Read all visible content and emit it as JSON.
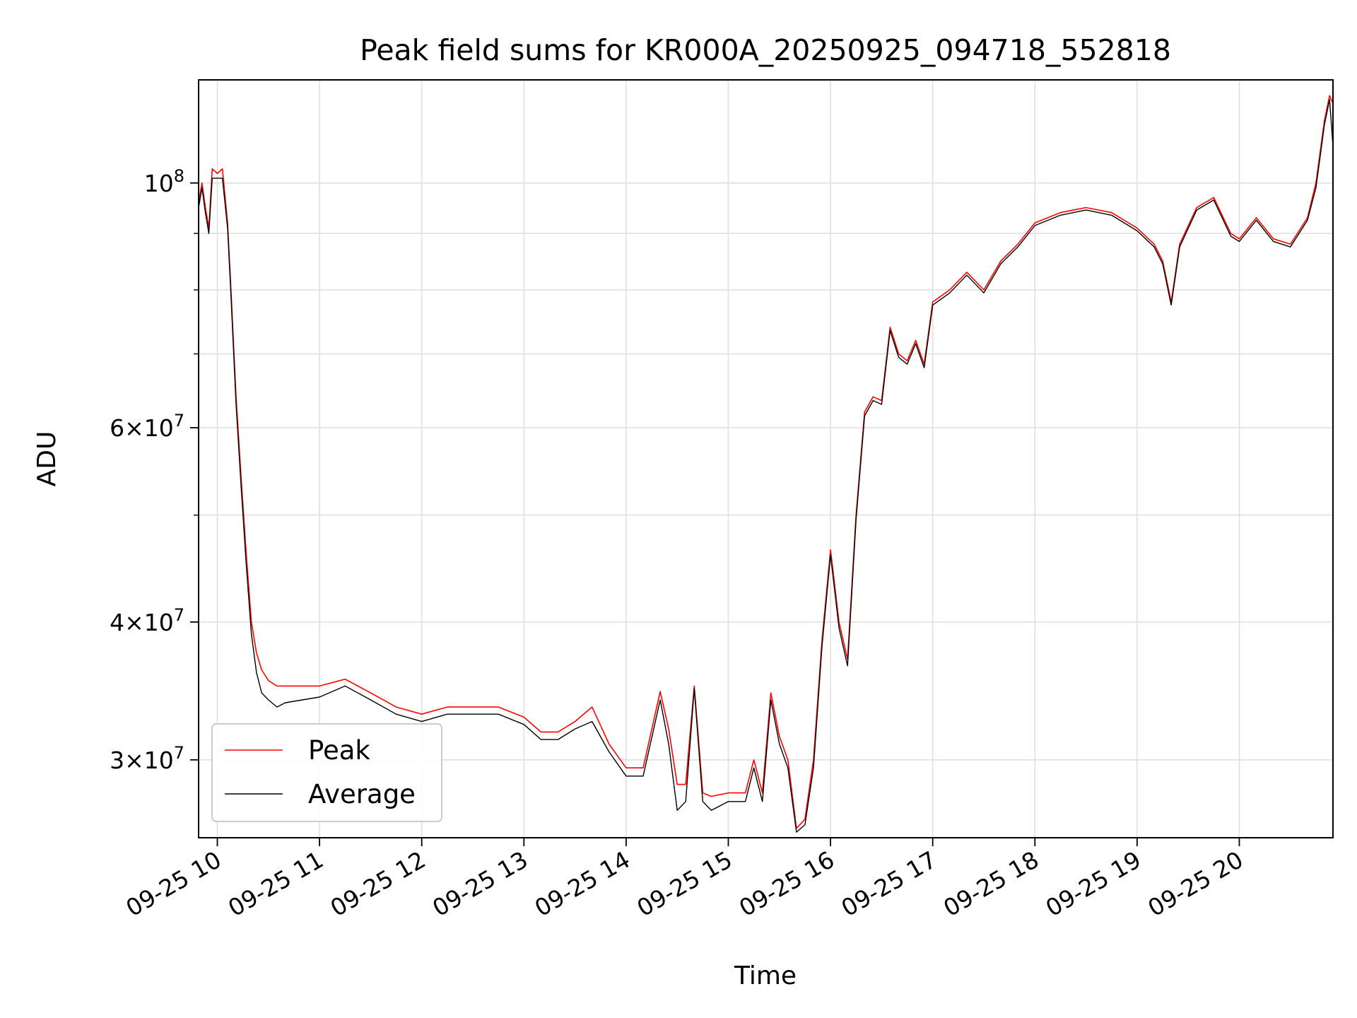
{
  "chart_data": {
    "type": "line",
    "title": "Peak field sums for KR000A_20250925_094718_552818",
    "xlabel": "Time",
    "ylabel": "ADU",
    "yscale": "log",
    "xlim": [
      "2025-09-25 09:49",
      "2025-09-25 20:55"
    ],
    "ylim": [
      25500000,
      124000000
    ],
    "grid": true,
    "legend_position": "lower-left",
    "x_ticks": [
      "09-25 10",
      "09-25 11",
      "09-25 12",
      "09-25 13",
      "09-25 14",
      "09-25 15",
      "09-25 16",
      "09-25 17",
      "09-25 18",
      "09-25 19",
      "09-25 20"
    ],
    "x_tick_values": [
      "2025-09-25 10:00",
      "2025-09-25 11:00",
      "2025-09-25 12:00",
      "2025-09-25 13:00",
      "2025-09-25 14:00",
      "2025-09-25 15:00",
      "2025-09-25 16:00",
      "2025-09-25 17:00",
      "2025-09-25 18:00",
      "2025-09-25 19:00",
      "2025-09-25 20:00"
    ],
    "y_major_ticks": [
      {
        "value": 100000000,
        "mant": "",
        "exp": "8"
      },
      {
        "value": 60000000,
        "mant": "6",
        "exp": "7"
      },
      {
        "value": 40000000,
        "mant": "4",
        "exp": "7"
      },
      {
        "value": 30000000,
        "mant": "3",
        "exp": "7"
      }
    ],
    "y_minor_ticks": [
      90000000,
      80000000,
      70000000,
      50000000
    ],
    "series": [
      {
        "name": "Peak",
        "color": "#ff0000",
        "x": [
          "2025-09-25 09:49",
          "2025-09-25 09:51",
          "2025-09-25 09:53",
          "2025-09-25 09:55",
          "2025-09-25 09:57",
          "2025-09-25 10:00",
          "2025-09-25 10:03",
          "2025-09-25 10:06",
          "2025-09-25 10:08",
          "2025-09-25 10:11",
          "2025-09-25 10:14",
          "2025-09-25 10:17",
          "2025-09-25 10:20",
          "2025-09-25 10:23",
          "2025-09-25 10:26",
          "2025-09-25 10:30",
          "2025-09-25 10:35",
          "2025-09-25 10:40",
          "2025-09-25 10:50",
          "2025-09-25 11:00",
          "2025-09-25 11:15",
          "2025-09-25 11:30",
          "2025-09-25 11:45",
          "2025-09-25 12:00",
          "2025-09-25 12:15",
          "2025-09-25 12:30",
          "2025-09-25 12:45",
          "2025-09-25 13:00",
          "2025-09-25 13:10",
          "2025-09-25 13:20",
          "2025-09-25 13:30",
          "2025-09-25 13:40",
          "2025-09-25 13:50",
          "2025-09-25 14:00",
          "2025-09-25 14:10",
          "2025-09-25 14:20",
          "2025-09-25 14:25",
          "2025-09-25 14:30",
          "2025-09-25 14:35",
          "2025-09-25 14:40",
          "2025-09-25 14:45",
          "2025-09-25 14:50",
          "2025-09-25 15:00",
          "2025-09-25 15:10",
          "2025-09-25 15:15",
          "2025-09-25 15:20",
          "2025-09-25 15:25",
          "2025-09-25 15:30",
          "2025-09-25 15:35",
          "2025-09-25 15:40",
          "2025-09-25 15:45",
          "2025-09-25 15:50",
          "2025-09-25 15:55",
          "2025-09-25 16:00",
          "2025-09-25 16:05",
          "2025-09-25 16:10",
          "2025-09-25 16:15",
          "2025-09-25 16:20",
          "2025-09-25 16:25",
          "2025-09-25 16:30",
          "2025-09-25 16:35",
          "2025-09-25 16:40",
          "2025-09-25 16:45",
          "2025-09-25 16:50",
          "2025-09-25 16:55",
          "2025-09-25 17:00",
          "2025-09-25 17:10",
          "2025-09-25 17:20",
          "2025-09-25 17:30",
          "2025-09-25 17:40",
          "2025-09-25 17:50",
          "2025-09-25 18:00",
          "2025-09-25 18:15",
          "2025-09-25 18:30",
          "2025-09-25 18:45",
          "2025-09-25 19:00",
          "2025-09-25 19:10",
          "2025-09-25 19:15",
          "2025-09-25 19:20",
          "2025-09-25 19:25",
          "2025-09-25 19:35",
          "2025-09-25 19:45",
          "2025-09-25 19:55",
          "2025-09-25 20:00",
          "2025-09-25 20:10",
          "2025-09-25 20:20",
          "2025-09-25 20:30",
          "2025-09-25 20:40",
          "2025-09-25 20:45",
          "2025-09-25 20:50",
          "2025-09-25 20:53",
          "2025-09-25 20:55"
        ],
        "y": [
          96000000,
          100000000,
          95000000,
          91000000,
          103000000,
          102000000,
          103000000,
          92000000,
          80000000,
          64000000,
          54000000,
          46000000,
          40000000,
          37500000,
          36200000,
          35400000,
          35000000,
          35000000,
          35000000,
          35000000,
          35500000,
          34500000,
          33500000,
          33000000,
          33500000,
          33500000,
          33500000,
          32800000,
          31800000,
          31800000,
          32500000,
          33500000,
          31000000,
          29500000,
          29500000,
          34600000,
          32000000,
          28500000,
          28500000,
          35000000,
          28000000,
          27800000,
          28000000,
          28000000,
          30000000,
          28000000,
          34500000,
          31500000,
          30000000,
          26000000,
          26500000,
          30000000,
          38500000,
          46500000,
          40000000,
          37000000,
          50000000,
          62000000,
          64000000,
          63500000,
          74000000,
          70000000,
          69000000,
          72000000,
          68500000,
          78000000,
          80000000,
          83000000,
          80000000,
          85000000,
          88000000,
          92000000,
          94000000,
          95000000,
          94000000,
          91000000,
          88000000,
          85000000,
          78000000,
          88000000,
          95000000,
          97000000,
          90000000,
          89000000,
          93000000,
          89000000,
          88000000,
          93000000,
          100000000,
          114000000,
          120000000,
          118000000
        ]
      },
      {
        "name": "Average",
        "color": "#000000",
        "x": [
          "2025-09-25 09:49",
          "2025-09-25 09:51",
          "2025-09-25 09:53",
          "2025-09-25 09:55",
          "2025-09-25 09:57",
          "2025-09-25 10:00",
          "2025-09-25 10:03",
          "2025-09-25 10:06",
          "2025-09-25 10:08",
          "2025-09-25 10:11",
          "2025-09-25 10:14",
          "2025-09-25 10:17",
          "2025-09-25 10:20",
          "2025-09-25 10:23",
          "2025-09-25 10:26",
          "2025-09-25 10:30",
          "2025-09-25 10:35",
          "2025-09-25 10:40",
          "2025-09-25 10:50",
          "2025-09-25 11:00",
          "2025-09-25 11:15",
          "2025-09-25 11:30",
          "2025-09-25 11:45",
          "2025-09-25 12:00",
          "2025-09-25 12:15",
          "2025-09-25 12:30",
          "2025-09-25 12:45",
          "2025-09-25 13:00",
          "2025-09-25 13:10",
          "2025-09-25 13:20",
          "2025-09-25 13:30",
          "2025-09-25 13:40",
          "2025-09-25 13:50",
          "2025-09-25 14:00",
          "2025-09-25 14:10",
          "2025-09-25 14:20",
          "2025-09-25 14:25",
          "2025-09-25 14:30",
          "2025-09-25 14:35",
          "2025-09-25 14:40",
          "2025-09-25 14:45",
          "2025-09-25 14:50",
          "2025-09-25 15:00",
          "2025-09-25 15:10",
          "2025-09-25 15:15",
          "2025-09-25 15:20",
          "2025-09-25 15:25",
          "2025-09-25 15:30",
          "2025-09-25 15:35",
          "2025-09-25 15:40",
          "2025-09-25 15:45",
          "2025-09-25 15:50",
          "2025-09-25 15:55",
          "2025-09-25 16:00",
          "2025-09-25 16:05",
          "2025-09-25 16:10",
          "2025-09-25 16:15",
          "2025-09-25 16:20",
          "2025-09-25 16:25",
          "2025-09-25 16:30",
          "2025-09-25 16:35",
          "2025-09-25 16:40",
          "2025-09-25 16:45",
          "2025-09-25 16:50",
          "2025-09-25 16:55",
          "2025-09-25 17:00",
          "2025-09-25 17:10",
          "2025-09-25 17:20",
          "2025-09-25 17:30",
          "2025-09-25 17:40",
          "2025-09-25 17:50",
          "2025-09-25 18:00",
          "2025-09-25 18:15",
          "2025-09-25 18:30",
          "2025-09-25 18:45",
          "2025-09-25 19:00",
          "2025-09-25 19:10",
          "2025-09-25 19:15",
          "2025-09-25 19:20",
          "2025-09-25 19:25",
          "2025-09-25 19:35",
          "2025-09-25 19:45",
          "2025-09-25 19:55",
          "2025-09-25 20:00",
          "2025-09-25 20:10",
          "2025-09-25 20:20",
          "2025-09-25 20:30",
          "2025-09-25 20:40",
          "2025-09-25 20:45",
          "2025-09-25 20:50",
          "2025-09-25 20:53",
          "2025-09-25 20:55"
        ],
        "y": [
          95000000,
          99000000,
          94000000,
          90000000,
          101000000,
          101000000,
          101000000,
          91000000,
          79000000,
          63000000,
          53000000,
          45000000,
          39000000,
          36000000,
          34500000,
          34000000,
          33500000,
          33800000,
          34000000,
          34200000,
          35000000,
          34000000,
          33000000,
          32500000,
          33000000,
          33000000,
          33000000,
          32300000,
          31300000,
          31300000,
          32000000,
          32500000,
          30500000,
          29000000,
          29000000,
          34000000,
          31000000,
          27000000,
          27500000,
          34800000,
          27500000,
          27000000,
          27500000,
          27500000,
          29500000,
          27500000,
          34000000,
          31000000,
          29500000,
          25800000,
          26200000,
          29500000,
          38000000,
          46000000,
          39500000,
          36500000,
          49500000,
          61500000,
          63500000,
          63000000,
          73500000,
          69500000,
          68500000,
          71500000,
          68000000,
          77500000,
          79500000,
          82500000,
          79500000,
          84500000,
          87500000,
          91500000,
          93500000,
          94500000,
          93500000,
          90500000,
          87500000,
          84500000,
          77500000,
          87500000,
          94500000,
          96500000,
          89500000,
          88500000,
          92500000,
          88500000,
          87500000,
          92500000,
          99000000,
          113000000,
          119000000,
          108000000
        ]
      }
    ]
  }
}
